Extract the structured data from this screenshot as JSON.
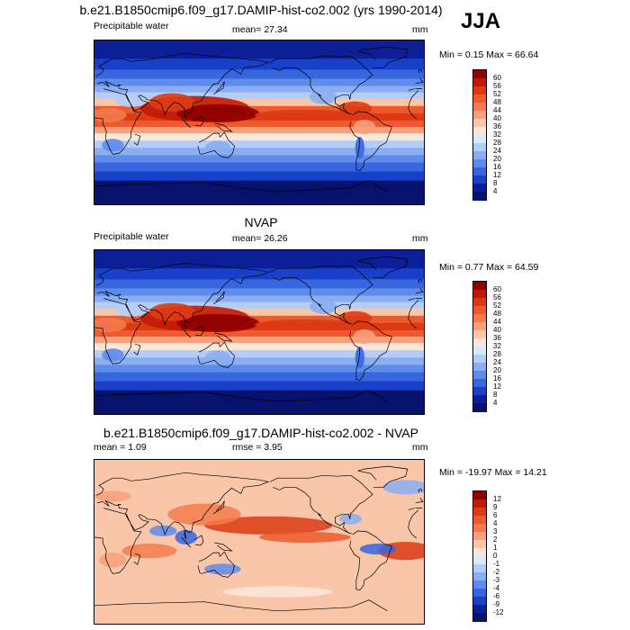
{
  "season": "JJA",
  "panels": [
    {
      "id": "model",
      "title": "b.e21.B1850cmip6.f09_g17.DAMIP-hist-co2.002 (yrs 1990-2014)",
      "left_label": "Precipitable water",
      "stat1": "mean=  27.34",
      "stat2": "",
      "units": "mm",
      "minmax": "Min =   0.15 Max =  66.64",
      "levels": [
        "60",
        "56",
        "52",
        "48",
        "44",
        "40",
        "36",
        "32",
        "28",
        "24",
        "20",
        "16",
        "12",
        "8",
        "4"
      ],
      "colors": [
        "#8f0000",
        "#c01a06",
        "#dd3a14",
        "#ec5a2e",
        "#f37b4f",
        "#f7a07a",
        "#f9c6aa",
        "#fce6da",
        "#dbe8fb",
        "#b4cdf7",
        "#8aaef1",
        "#5f8cea",
        "#3766df",
        "#1840c8",
        "#0c1f97",
        "#06126b"
      ]
    },
    {
      "id": "obs",
      "title": "NVAP",
      "left_label": "Precipitable water",
      "stat1": "mean=  26.26",
      "stat2": "",
      "units": "mm",
      "minmax": "Min =   0.77 Max =  64.59",
      "levels": [
        "60",
        "56",
        "52",
        "48",
        "44",
        "40",
        "36",
        "32",
        "28",
        "24",
        "20",
        "16",
        "12",
        "8",
        "4"
      ],
      "colors": [
        "#8f0000",
        "#c01a06",
        "#dd3a14",
        "#ec5a2e",
        "#f37b4f",
        "#f7a07a",
        "#f9c6aa",
        "#fce6da",
        "#dbe8fb",
        "#b4cdf7",
        "#8aaef1",
        "#5f8cea",
        "#3766df",
        "#1840c8",
        "#0c1f97",
        "#06126b"
      ]
    },
    {
      "id": "diff",
      "title": "b.e21.B1850cmip6.f09_g17.DAMIP-hist-co2.002 - NVAP",
      "left_label": "mean =   1.09",
      "stat1": "rmse =   3.95",
      "stat2": "",
      "units": "mm",
      "minmax": "Min = -19.97 Max =  14.21",
      "levels": [
        "12",
        "9",
        "6",
        "4",
        "3",
        "2",
        "1",
        "0",
        "-1",
        "-2",
        "-3",
        "-4",
        "-6",
        "-9",
        "-12"
      ],
      "colors": [
        "#8f0000",
        "#c01a06",
        "#dd3a14",
        "#ec5a2e",
        "#f37b4f",
        "#f7a07a",
        "#f9c6aa",
        "#fce6da",
        "#dbe8fb",
        "#b4cdf7",
        "#8aaef1",
        "#5f8cea",
        "#3766df",
        "#1840c8",
        "#0c1f97",
        "#06126b"
      ]
    }
  ]
}
